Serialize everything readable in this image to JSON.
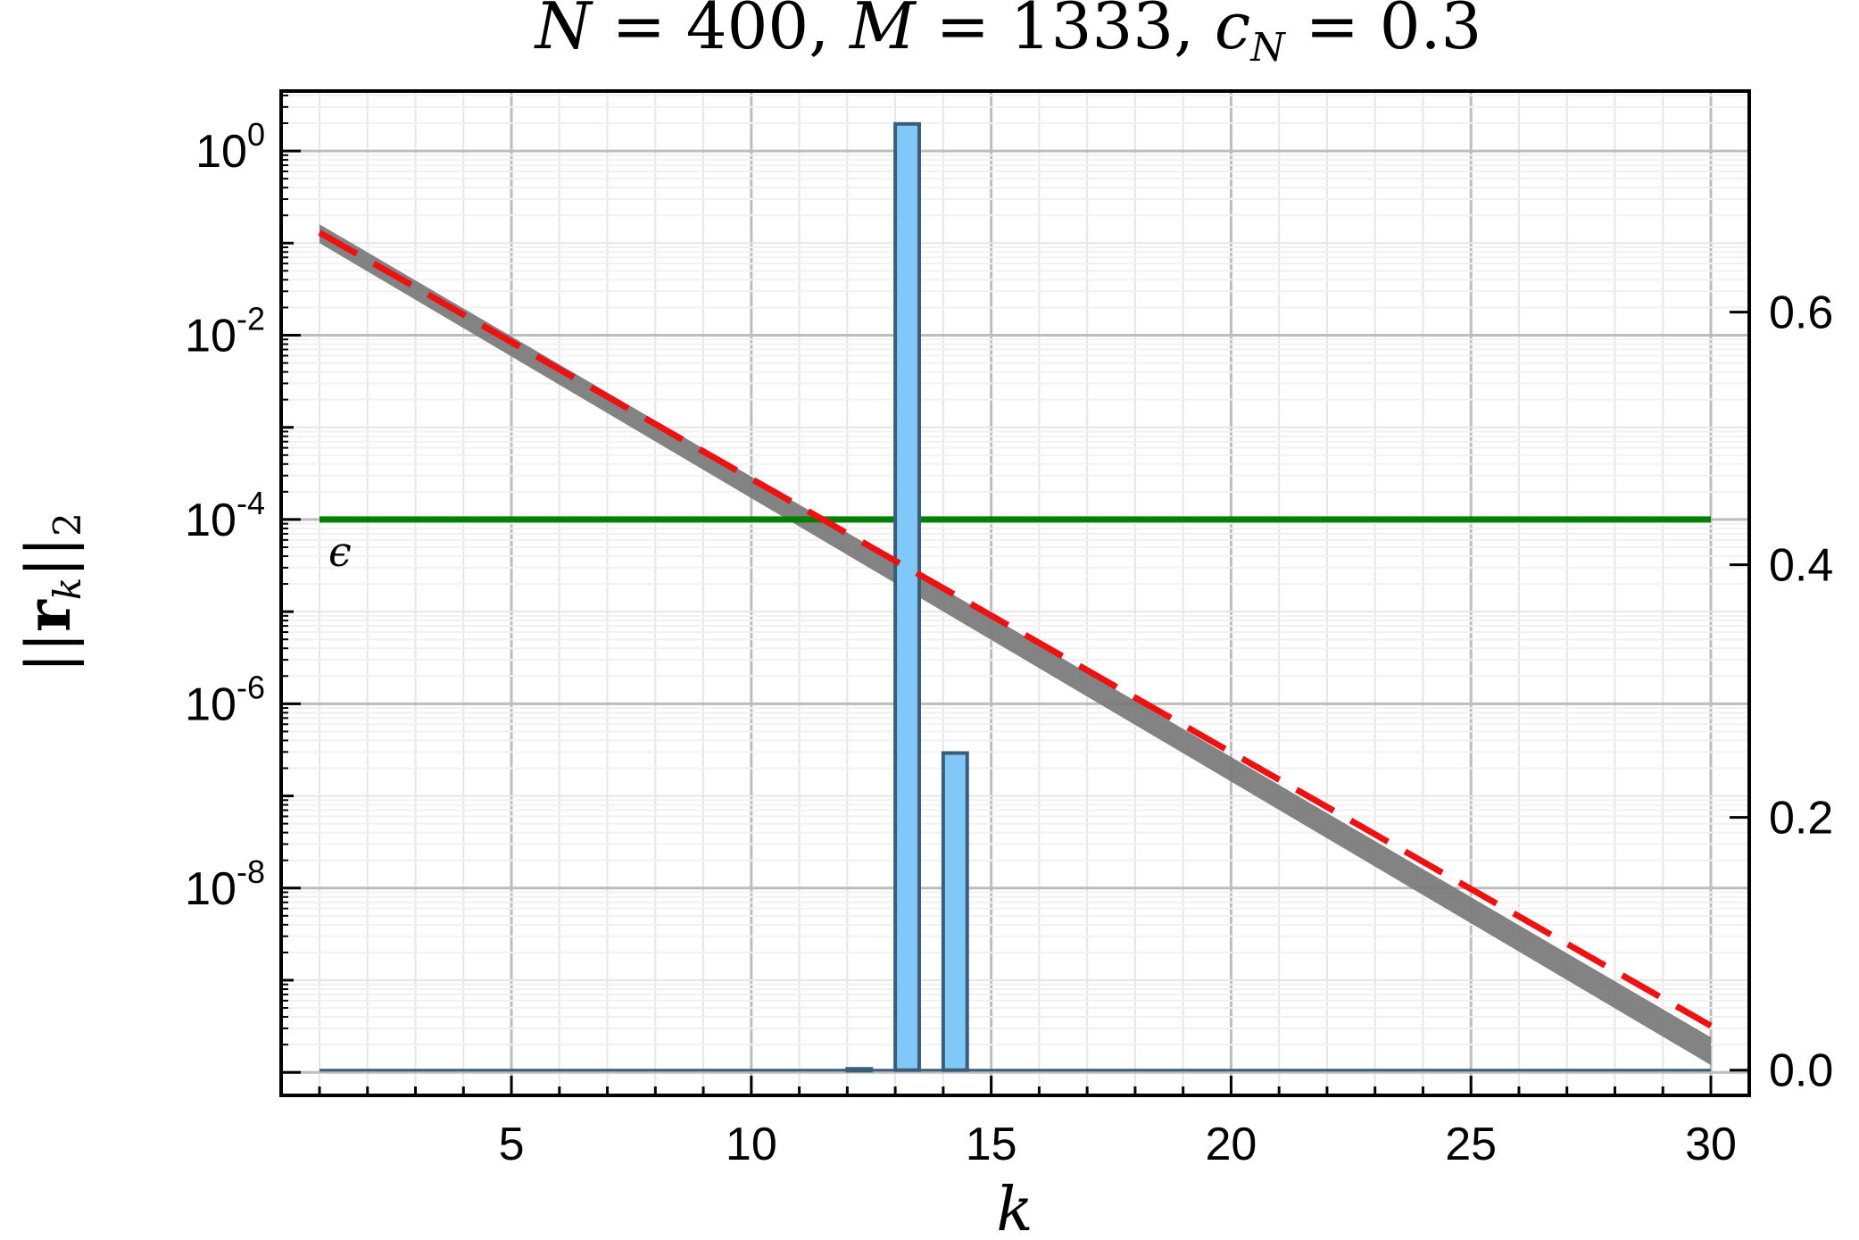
{
  "chart_data": {
    "type": "bar",
    "title": {
      "N_label": "N",
      "eq1": " = 400, ",
      "M_label": "M",
      "eq2": " = 1333, ",
      "c_label": "c",
      "c_sub": "N",
      "eq3": " = 0.3"
    },
    "xlabel": "k",
    "ylabel": {
      "open": "||",
      "bold": "r",
      "sub": "k",
      "close": "||",
      "sub2": "2"
    },
    "xlim": [
      0.2,
      30.8
    ],
    "x_ticks": [
      5,
      10,
      15,
      20,
      25,
      30
    ],
    "x_tick_labels": [
      "5",
      "10",
      "15",
      "20",
      "25",
      "30"
    ],
    "y_left": {
      "scale": "log",
      "lim_exp": [
        -10.25,
        0.65
      ],
      "tick_exps": [
        0,
        -2,
        -4,
        -6,
        -8
      ],
      "tick_labels": [
        {
          "base": "10",
          "exp": "0"
        },
        {
          "base": "10",
          "exp": "-2"
        },
        {
          "base": "10",
          "exp": "-4"
        },
        {
          "base": "10",
          "exp": "-6"
        },
        {
          "base": "10",
          "exp": "-8"
        }
      ]
    },
    "y_right": {
      "scale": "linear",
      "lim": [
        -0.02,
        0.775
      ],
      "ticks": [
        0.0,
        0.2,
        0.4,
        0.6
      ],
      "tick_labels": [
        "0.0",
        "0.2",
        "0.4",
        "0.6"
      ]
    },
    "grid": true,
    "series": [
      {
        "kind": "band",
        "axis": "left",
        "x": [
          1,
          30
        ],
        "y_low": [
          0.1,
          1.2e-10
        ],
        "y_high": [
          0.16,
          2.4e-10
        ],
        "color": "#787878"
      },
      {
        "kind": "line",
        "axis": "left",
        "style": "dashed",
        "x": [
          1,
          30
        ],
        "y": [
          0.13,
          3.2e-10
        ],
        "color": "#ee1111"
      },
      {
        "kind": "hline",
        "axis": "left",
        "y": 0.0001,
        "x_range": [
          1,
          30
        ],
        "color": "#008000",
        "label": "ϵ"
      },
      {
        "kind": "bars",
        "axis": "right",
        "categories": [
          12,
          13,
          14
        ],
        "values": [
          0.001,
          0.749,
          0.251
        ],
        "bar_width": 0.5,
        "color": "#7fc8f8",
        "edge_color": "#3a5e7a"
      }
    ]
  }
}
